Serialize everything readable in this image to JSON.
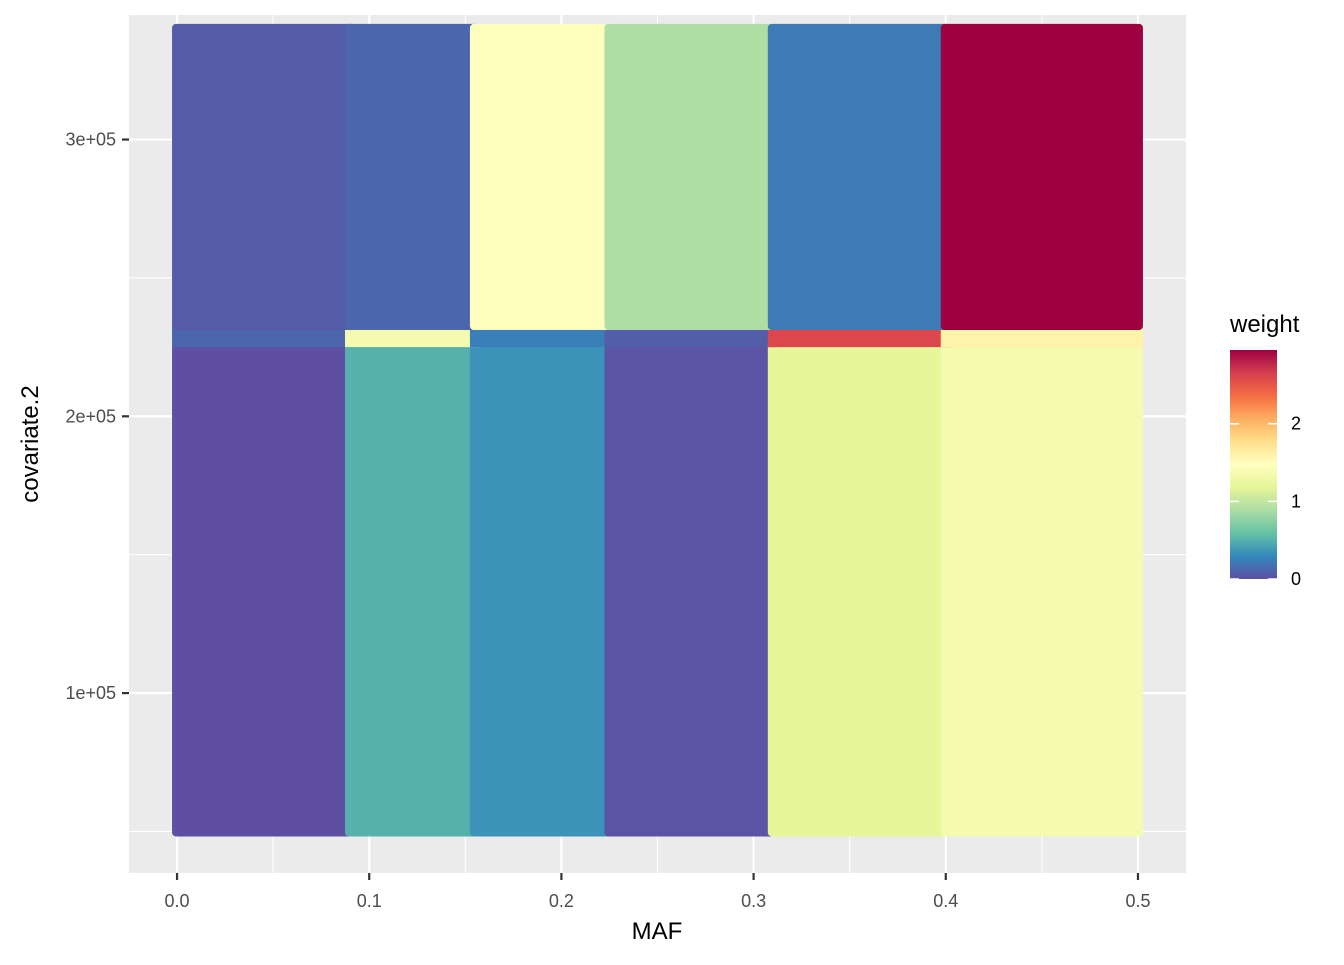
{
  "chart_data": {
    "type": "heatmap",
    "title": "",
    "xlabel": "MAF",
    "ylabel": "covariate.2",
    "xlim": [
      -0.025,
      0.525
    ],
    "ylim": [
      35000,
      345000
    ],
    "x_ticks": [
      {
        "value": 0.0,
        "label": "0.0"
      },
      {
        "value": 0.1,
        "label": "0.1"
      },
      {
        "value": 0.2,
        "label": "0.2"
      },
      {
        "value": 0.3,
        "label": "0.3"
      },
      {
        "value": 0.4,
        "label": "0.4"
      },
      {
        "value": 0.5,
        "label": "0.5"
      }
    ],
    "y_ticks": [
      {
        "value": 100000,
        "label": "1e+05"
      },
      {
        "value": 200000,
        "label": "2e+05"
      },
      {
        "value": 300000,
        "label": "3e+05"
      }
    ],
    "grid": true,
    "x_breaks": [
      0.0,
      0.09,
      0.155,
      0.225,
      0.31,
      0.4,
      0.5
    ],
    "y_breaks": [
      50000,
      225000,
      233000,
      340000
    ],
    "cells": [
      {
        "x0": 0.0,
        "x1": 0.09,
        "y0": 50000,
        "y1": 225000,
        "weight": 0.0
      },
      {
        "x0": 0.09,
        "x1": 0.155,
        "y0": 50000,
        "y1": 225000,
        "weight": 0.5
      },
      {
        "x0": 0.155,
        "x1": 0.225,
        "y0": 50000,
        "y1": 225000,
        "weight": 0.35
      },
      {
        "x0": 0.225,
        "x1": 0.31,
        "y0": 50000,
        "y1": 225000,
        "weight": 0.02
      },
      {
        "x0": 0.31,
        "x1": 0.4,
        "y0": 50000,
        "y1": 225000,
        "weight": 1.2
      },
      {
        "x0": 0.4,
        "x1": 0.5,
        "y0": 50000,
        "y1": 225000,
        "weight": 1.35
      },
      {
        "x0": 0.0,
        "x1": 0.09,
        "y0": 225000,
        "y1": 233000,
        "weight": 0.12
      },
      {
        "x0": 0.09,
        "x1": 0.155,
        "y0": 225000,
        "y1": 233000,
        "weight": 1.35
      },
      {
        "x0": 0.155,
        "x1": 0.225,
        "y0": 225000,
        "y1": 233000,
        "weight": 0.25
      },
      {
        "x0": 0.225,
        "x1": 0.31,
        "y0": 225000,
        "y1": 233000,
        "weight": 0.08
      },
      {
        "x0": 0.31,
        "x1": 0.4,
        "y0": 225000,
        "y1": 233000,
        "weight": 2.6
      },
      {
        "x0": 0.4,
        "x1": 0.5,
        "y0": 225000,
        "y1": 233000,
        "weight": 1.6
      },
      {
        "x0": 0.0,
        "x1": 0.09,
        "y0": 233000,
        "y1": 340000,
        "weight": 0.06
      },
      {
        "x0": 0.09,
        "x1": 0.155,
        "y0": 233000,
        "y1": 340000,
        "weight": 0.12
      },
      {
        "x0": 0.155,
        "x1": 0.225,
        "y0": 233000,
        "y1": 340000,
        "weight": 1.45
      },
      {
        "x0": 0.225,
        "x1": 0.31,
        "y0": 233000,
        "y1": 340000,
        "weight": 0.9
      },
      {
        "x0": 0.31,
        "x1": 0.4,
        "y0": 233000,
        "y1": 340000,
        "weight": 0.22
      },
      {
        "x0": 0.4,
        "x1": 0.5,
        "y0": 233000,
        "y1": 340000,
        "weight": 2.95
      }
    ],
    "legend": {
      "title": "weight",
      "position": "right",
      "range": [
        0,
        2.95
      ],
      "ticks": [
        {
          "value": 0,
          "label": "0"
        },
        {
          "value": 1,
          "label": "1"
        },
        {
          "value": 2,
          "label": "2"
        }
      ],
      "palette": [
        "#5E4FA2",
        "#3288BD",
        "#66C2A5",
        "#ABDDA4",
        "#E6F598",
        "#FFFFBF",
        "#FEE08B",
        "#FDAE61",
        "#F46D43",
        "#D53E4F",
        "#9E0142"
      ]
    },
    "panel_background": "#EBEBEB",
    "grid_color": "#FFFFFF"
  }
}
